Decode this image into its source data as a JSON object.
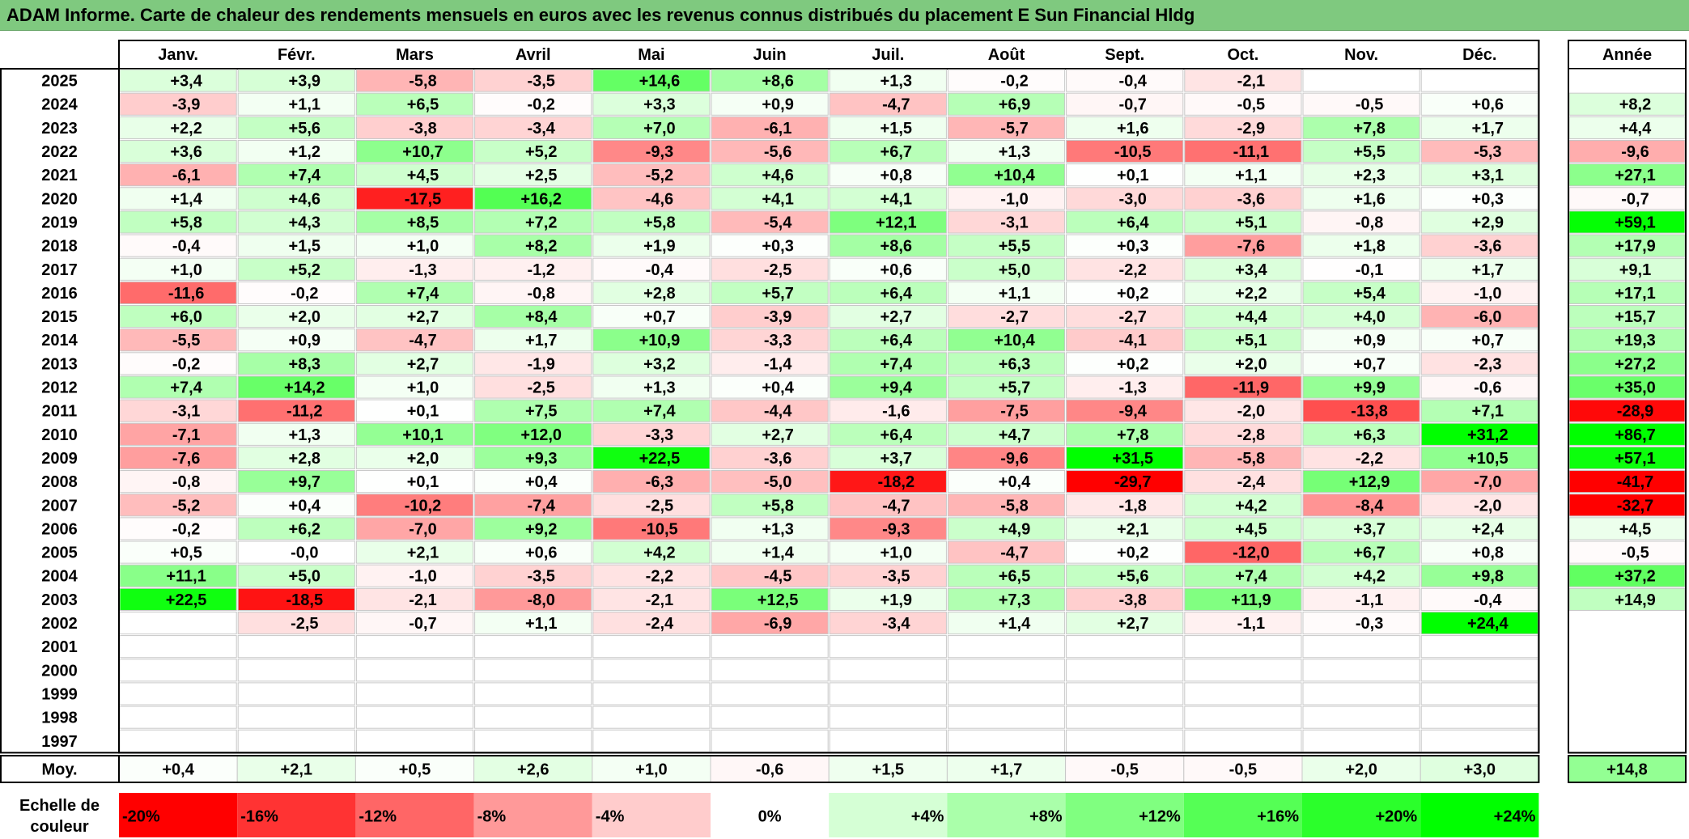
{
  "title": "ADAM Informe. Carte de chaleur des rendements mensuels en euros avec les revenus connus distribués du placement E Sun Financial Hldg",
  "chart_data": {
    "type": "heatmap",
    "months": [
      "Janv.",
      "Févr.",
      "Mars",
      "Avril",
      "Mai",
      "Juin",
      "Juil.",
      "Août",
      "Sept.",
      "Oct.",
      "Nov.",
      "Déc."
    ],
    "year_header": "Année",
    "rows": [
      {
        "year": "2025",
        "values": [
          "+3,4",
          "+3,9",
          "-5,8",
          "-3,5",
          "+14,6",
          "+8,6",
          "+1,3",
          "-0,2",
          "-0,4",
          "-2,1",
          "",
          ""
        ],
        "annual": ""
      },
      {
        "year": "2024",
        "values": [
          "-3,9",
          "+1,1",
          "+6,5",
          "-0,2",
          "+3,3",
          "+0,9",
          "-4,7",
          "+6,9",
          "-0,7",
          "-0,5",
          "-0,5",
          "+0,6"
        ],
        "annual": "+8,2"
      },
      {
        "year": "2023",
        "values": [
          "+2,2",
          "+5,6",
          "-3,8",
          "-3,4",
          "+7,0",
          "-6,1",
          "+1,5",
          "-5,7",
          "+1,6",
          "-2,9",
          "+7,8",
          "+1,7"
        ],
        "annual": "+4,4"
      },
      {
        "year": "2022",
        "values": [
          "+3,6",
          "+1,2",
          "+10,7",
          "+5,2",
          "-9,3",
          "-5,6",
          "+6,7",
          "+1,3",
          "-10,5",
          "-11,1",
          "+5,5",
          "-5,3"
        ],
        "annual": "-9,6"
      },
      {
        "year": "2021",
        "values": [
          "-6,1",
          "+7,4",
          "+4,5",
          "+2,5",
          "-5,2",
          "+4,6",
          "+0,8",
          "+10,4",
          "+0,1",
          "+1,1",
          "+2,3",
          "+3,1"
        ],
        "annual": "+27,1"
      },
      {
        "year": "2020",
        "values": [
          "+1,4",
          "+4,6",
          "-17,5",
          "+16,2",
          "-4,6",
          "+4,1",
          "+4,1",
          "-1,0",
          "-3,0",
          "-3,6",
          "+1,6",
          "+0,3"
        ],
        "annual": "-0,7"
      },
      {
        "year": "2019",
        "values": [
          "+5,8",
          "+4,3",
          "+8,5",
          "+7,2",
          "+5,8",
          "-5,4",
          "+12,1",
          "-3,1",
          "+6,4",
          "+5,1",
          "-0,8",
          "+2,9"
        ],
        "annual": "+59,1"
      },
      {
        "year": "2018",
        "values": [
          "-0,4",
          "+1,5",
          "+1,0",
          "+8,2",
          "+1,9",
          "+0,3",
          "+8,6",
          "+5,5",
          "+0,3",
          "-7,6",
          "+1,8",
          "-3,6"
        ],
        "annual": "+17,9"
      },
      {
        "year": "2017",
        "values": [
          "+1,0",
          "+5,2",
          "-1,3",
          "-1,2",
          "-0,4",
          "-2,5",
          "+0,6",
          "+5,0",
          "-2,2",
          "+3,4",
          "-0,1",
          "+1,7"
        ],
        "annual": "+9,1"
      },
      {
        "year": "2016",
        "values": [
          "-11,6",
          "-0,2",
          "+7,4",
          "-0,8",
          "+2,8",
          "+5,7",
          "+6,4",
          "+1,1",
          "+0,2",
          "+2,2",
          "+5,4",
          "-1,0"
        ],
        "annual": "+17,1"
      },
      {
        "year": "2015",
        "values": [
          "+6,0",
          "+2,0",
          "+2,7",
          "+8,4",
          "+0,7",
          "-3,9",
          "+2,7",
          "-2,7",
          "-2,7",
          "+4,4",
          "+4,0",
          "-6,0"
        ],
        "annual": "+15,7"
      },
      {
        "year": "2014",
        "values": [
          "-5,5",
          "+0,9",
          "-4,7",
          "+1,7",
          "+10,9",
          "-3,3",
          "+6,4",
          "+10,4",
          "-4,1",
          "+5,1",
          "+0,9",
          "+0,7"
        ],
        "annual": "+19,3"
      },
      {
        "year": "2013",
        "values": [
          "-0,2",
          "+8,3",
          "+2,7",
          "-1,9",
          "+3,2",
          "-1,4",
          "+7,4",
          "+6,3",
          "+0,2",
          "+2,0",
          "+0,7",
          "-2,3"
        ],
        "annual": "+27,2"
      },
      {
        "year": "2012",
        "values": [
          "+7,4",
          "+14,2",
          "+1,0",
          "-2,5",
          "+1,3",
          "+0,4",
          "+9,4",
          "+5,7",
          "-1,3",
          "-11,9",
          "+9,9",
          "-0,6"
        ],
        "annual": "+35,0"
      },
      {
        "year": "2011",
        "values": [
          "-3,1",
          "-11,2",
          "+0,1",
          "+7,5",
          "+7,4",
          "-4,4",
          "-1,6",
          "-7,5",
          "-9,4",
          "-2,0",
          "-13,8",
          "+7,1"
        ],
        "annual": "-28,9"
      },
      {
        "year": "2010",
        "values": [
          "-7,1",
          "+1,3",
          "+10,1",
          "+12,0",
          "-3,3",
          "+2,7",
          "+6,4",
          "+4,7",
          "+7,8",
          "-2,8",
          "+6,3",
          "+31,2"
        ],
        "annual": "+86,7"
      },
      {
        "year": "2009",
        "values": [
          "-7,6",
          "+2,8",
          "+2,0",
          "+9,3",
          "+22,5",
          "-3,6",
          "+3,7",
          "-9,6",
          "+31,5",
          "-5,8",
          "-2,2",
          "+10,5"
        ],
        "annual": "+57,1"
      },
      {
        "year": "2008",
        "values": [
          "-0,8",
          "+9,7",
          "+0,1",
          "+0,4",
          "-6,3",
          "-5,0",
          "-18,2",
          "+0,4",
          "-29,7",
          "-2,4",
          "+12,9",
          "-7,0"
        ],
        "annual": "-41,7"
      },
      {
        "year": "2007",
        "values": [
          "-5,2",
          "+0,4",
          "-10,2",
          "-7,4",
          "-2,5",
          "+5,8",
          "-4,7",
          "-5,8",
          "-1,8",
          "+4,2",
          "-8,4",
          "-2,0"
        ],
        "annual": "-32,7"
      },
      {
        "year": "2006",
        "values": [
          "-0,2",
          "+6,2",
          "-7,0",
          "+9,2",
          "-10,5",
          "+1,3",
          "-9,3",
          "+4,9",
          "+2,1",
          "+4,5",
          "+3,7",
          "+2,4"
        ],
        "annual": "+4,5"
      },
      {
        "year": "2005",
        "values": [
          "+0,5",
          "-0,0",
          "+2,1",
          "+0,6",
          "+4,2",
          "+1,4",
          "+1,0",
          "-4,7",
          "+0,2",
          "-12,0",
          "+6,7",
          "+0,8"
        ],
        "annual": "-0,5"
      },
      {
        "year": "2004",
        "values": [
          "+11,1",
          "+5,0",
          "-1,0",
          "-3,5",
          "-2,2",
          "-4,5",
          "-3,5",
          "+6,5",
          "+5,6",
          "+7,4",
          "+4,2",
          "+9,8"
        ],
        "annual": "+37,2"
      },
      {
        "year": "2003",
        "values": [
          "+22,5",
          "-18,5",
          "-2,1",
          "-8,0",
          "-2,1",
          "+12,5",
          "+1,9",
          "+7,3",
          "-3,8",
          "+11,9",
          "-1,1",
          "-0,4"
        ],
        "annual": "+14,9"
      },
      {
        "year": "2002",
        "values": [
          "",
          "-2,5",
          "-0,7",
          "+1,1",
          "-2,4",
          "-6,9",
          "-3,4",
          "+1,4",
          "+2,7",
          "-1,1",
          "-0,3",
          "+24,4"
        ],
        "annual": ""
      },
      {
        "year": "2001",
        "values": [
          "",
          "",
          "",
          "",
          "",
          "",
          "",
          "",
          "",
          "",
          "",
          ""
        ],
        "annual": ""
      },
      {
        "year": "2000",
        "values": [
          "",
          "",
          "",
          "",
          "",
          "",
          "",
          "",
          "",
          "",
          "",
          ""
        ],
        "annual": ""
      },
      {
        "year": "1999",
        "values": [
          "",
          "",
          "",
          "",
          "",
          "",
          "",
          "",
          "",
          "",
          "",
          ""
        ],
        "annual": ""
      },
      {
        "year": "1998",
        "values": [
          "",
          "",
          "",
          "",
          "",
          "",
          "",
          "",
          "",
          "",
          "",
          ""
        ],
        "annual": ""
      },
      {
        "year": "1997",
        "values": [
          "",
          "",
          "",
          "",
          "",
          "",
          "",
          "",
          "",
          "",
          "",
          ""
        ],
        "annual": ""
      }
    ],
    "average": {
      "label": "Moy.",
      "values": [
        "+0,4",
        "+2,1",
        "+0,5",
        "+2,6",
        "+1,0",
        "-0,6",
        "+1,5",
        "+1,7",
        "-0,5",
        "-0,5",
        "+2,0",
        "+3,0"
      ],
      "annual": "+14,8"
    },
    "scale": {
      "label_line1": "Echelle de",
      "label_line2": "couleur",
      "items": [
        "-20%",
        "-16%",
        "-12%",
        "-8%",
        "-4%",
        "0%",
        "+4%",
        "+8%",
        "+12%",
        "+16%",
        "+20%",
        "+24%"
      ],
      "values": [
        -20,
        -16,
        -12,
        -8,
        -4,
        0,
        4,
        8,
        12,
        16,
        20,
        24
      ]
    },
    "colors": {
      "neg_max": "#ff0000",
      "zero": "#ffffff",
      "pos_max": "#00ff00",
      "title_bg": "#7fc97f"
    }
  }
}
